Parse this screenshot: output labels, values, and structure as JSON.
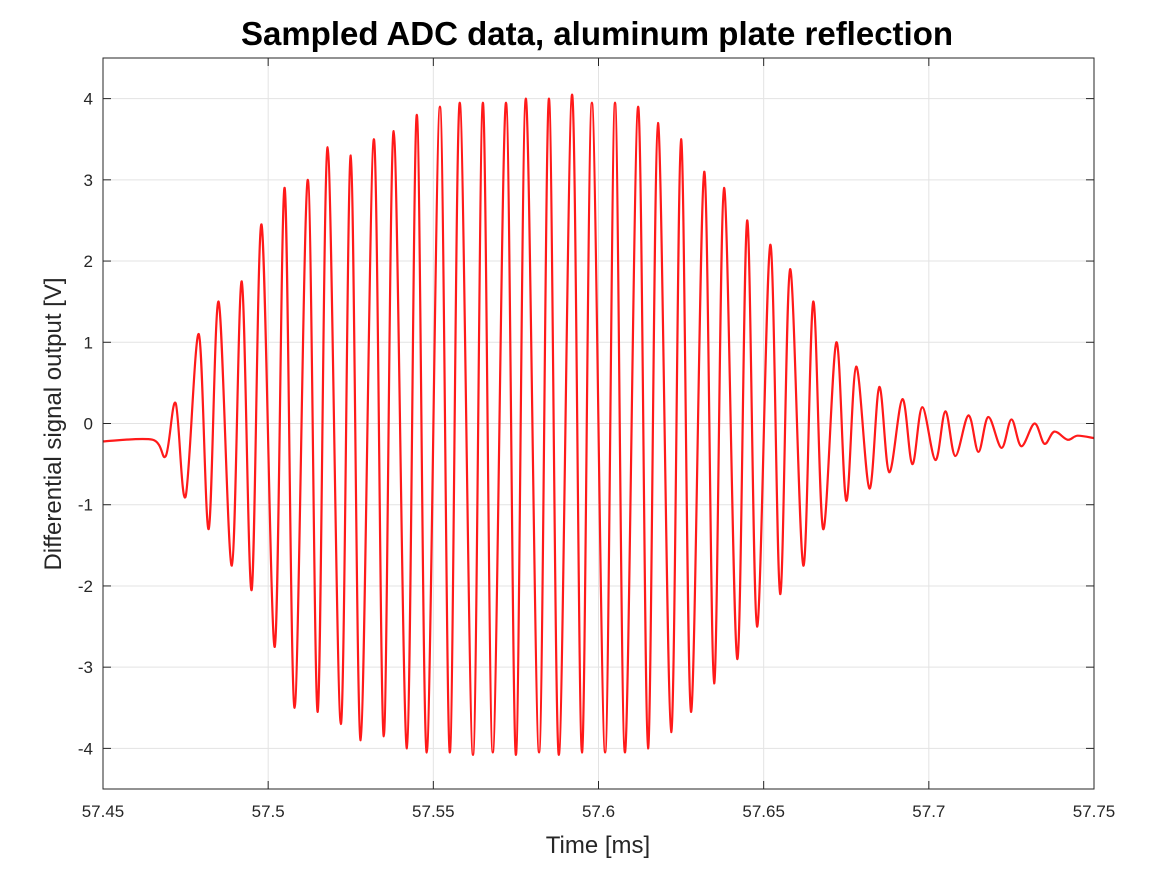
{
  "chart_data": {
    "type": "line",
    "title": "Sampled ADC data, aluminum plate reflection",
    "xlabel": "Time [ms]",
    "ylabel": "Differential signal output [V]",
    "xlim": [
      57.45,
      57.75
    ],
    "ylim": [
      -4.5,
      4.5
    ],
    "xticks": [
      57.45,
      57.5,
      57.55,
      57.6,
      57.65,
      57.7,
      57.75
    ],
    "xtick_labels": [
      "57.45",
      "57.5",
      "57.55",
      "57.6",
      "57.65",
      "57.7",
      "57.75"
    ],
    "yticks": [
      4,
      3,
      2,
      1,
      0,
      -1,
      -2,
      -3,
      -4
    ],
    "ytick_labels": [
      "4",
      "3",
      "2",
      "1",
      "0",
      "-1",
      "-2",
      "-3",
      "-4"
    ],
    "grid": true,
    "line_color": "#ff1a1a",
    "series": [
      {
        "x": [
          57.45,
          57.465,
          57.469,
          57.472,
          57.475,
          57.479,
          57.482,
          57.485,
          57.489,
          57.492,
          57.495,
          57.498,
          57.502,
          57.505,
          57.508,
          57.512,
          57.515,
          57.518,
          57.522,
          57.525,
          57.528,
          57.532,
          57.535,
          57.538,
          57.542,
          57.545,
          57.548,
          57.552,
          57.555,
          57.558,
          57.562,
          57.565,
          57.568,
          57.572,
          57.575,
          57.578,
          57.582,
          57.585,
          57.588,
          57.592,
          57.595,
          57.598,
          57.602,
          57.605,
          57.608,
          57.612,
          57.615,
          57.618,
          57.622,
          57.625,
          57.628,
          57.632,
          57.635,
          57.638,
          57.642,
          57.645,
          57.648,
          57.652,
          57.655,
          57.658,
          57.662,
          57.665,
          57.668,
          57.672,
          57.675,
          57.678,
          57.682,
          57.685,
          57.688,
          57.692,
          57.695,
          57.698,
          57.702,
          57.705,
          57.708,
          57.712,
          57.715,
          57.718,
          57.722,
          57.725,
          57.728,
          57.732,
          57.735,
          57.738,
          57.742,
          57.745,
          57.75
        ],
        "y": [
          -0.22,
          -0.2,
          -0.4,
          0.25,
          -0.9,
          1.1,
          -1.3,
          1.5,
          -1.75,
          1.75,
          -2.05,
          2.45,
          -2.75,
          2.9,
          -3.5,
          3.0,
          -3.55,
          3.4,
          -3.7,
          3.3,
          -3.9,
          3.5,
          -3.85,
          3.6,
          -4.0,
          3.8,
          -4.05,
          3.9,
          -4.05,
          3.95,
          -4.08,
          3.95,
          -4.05,
          3.95,
          -4.08,
          4.0,
          -4.05,
          4.0,
          -4.08,
          4.05,
          -4.05,
          3.95,
          -4.05,
          3.95,
          -4.05,
          3.9,
          -4.0,
          3.7,
          -3.8,
          3.5,
          -3.55,
          3.1,
          -3.2,
          2.9,
          -2.9,
          2.5,
          -2.5,
          2.2,
          -2.1,
          1.9,
          -1.75,
          1.5,
          -1.3,
          1.0,
          -0.95,
          0.7,
          -0.8,
          0.45,
          -0.6,
          0.3,
          -0.5,
          0.2,
          -0.45,
          0.15,
          -0.4,
          0.1,
          -0.35,
          0.08,
          -0.3,
          0.05,
          -0.28,
          0.0,
          -0.25,
          -0.1,
          -0.2,
          -0.15,
          -0.18
        ]
      }
    ]
  }
}
